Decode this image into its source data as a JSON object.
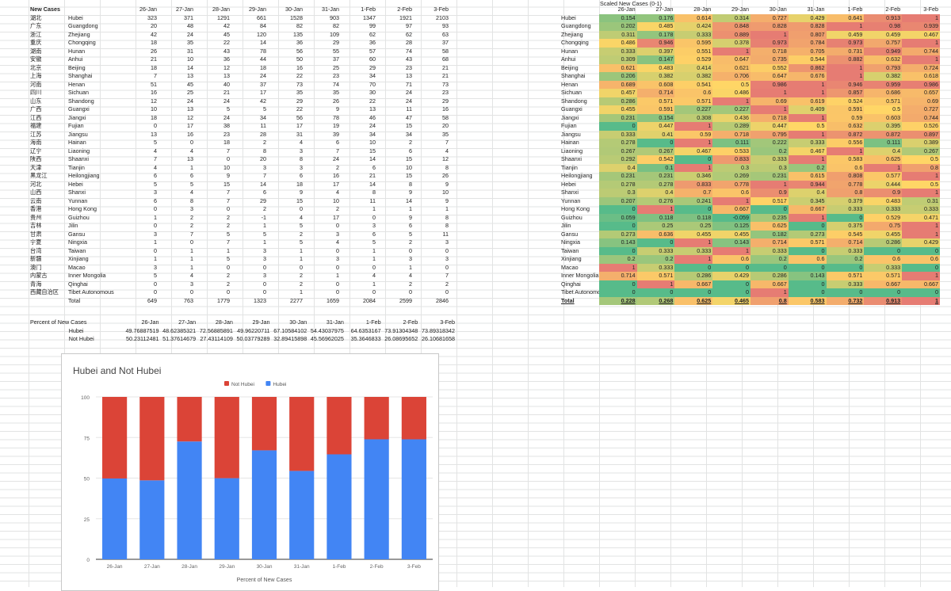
{
  "new_cases": {
    "title": "New Cases",
    "dates": [
      "26-Jan",
      "27-Jan",
      "28-Jan",
      "29-Jan",
      "30-Jan",
      "31-Jan",
      "1-Feb",
      "2-Feb",
      "3-Feb"
    ],
    "rows": [
      {
        "cn": "湖北",
        "en": "Hubei",
        "v": [
          "323",
          "371",
          "1291",
          "661",
          "1528",
          "903",
          "1347",
          "1921",
          "2103"
        ]
      },
      {
        "cn": "广东",
        "en": "Guangdong",
        "v": [
          "20",
          "48",
          "42",
          "84",
          "82",
          "82",
          "99",
          "97",
          "93"
        ]
      },
      {
        "cn": "浙江",
        "en": "Zhejiang",
        "v": [
          "42",
          "24",
          "45",
          "120",
          "135",
          "109",
          "62",
          "62",
          "63"
        ]
      },
      {
        "cn": "重庆",
        "en": "Chongqing",
        "v": [
          "18",
          "35",
          "22",
          "14",
          "36",
          "29",
          "36",
          "28",
          "37"
        ]
      },
      {
        "cn": "湖南",
        "en": "Hunan",
        "v": [
          "26",
          "31",
          "43",
          "78",
          "56",
          "55",
          "57",
          "74",
          "58"
        ]
      },
      {
        "cn": "安徽",
        "en": "Anhui",
        "v": [
          "21",
          "10",
          "36",
          "44",
          "50",
          "37",
          "60",
          "43",
          "68"
        ]
      },
      {
        "cn": "北京",
        "en": "Beijing",
        "v": [
          "18",
          "14",
          "12",
          "18",
          "16",
          "25",
          "29",
          "23",
          "21"
        ]
      },
      {
        "cn": "上海",
        "en": "Shanghai",
        "v": [
          "7",
          "13",
          "13",
          "24",
          "22",
          "23",
          "34",
          "13",
          "21"
        ]
      },
      {
        "cn": "河南",
        "en": "Henan",
        "v": [
          "51",
          "45",
          "40",
          "37",
          "73",
          "74",
          "70",
          "71",
          "73"
        ]
      },
      {
        "cn": "四川",
        "en": "Sichuan",
        "v": [
          "16",
          "25",
          "21",
          "17",
          "35",
          "35",
          "30",
          "24",
          "23"
        ]
      },
      {
        "cn": "山东",
        "en": "Shandong",
        "v": [
          "12",
          "24",
          "24",
          "42",
          "29",
          "26",
          "22",
          "24",
          "29"
        ]
      },
      {
        "cn": "广西",
        "en": "Guangxi",
        "v": [
          "10",
          "13",
          "5",
          "5",
          "22",
          "9",
          "13",
          "11",
          "16"
        ]
      },
      {
        "cn": "江西",
        "en": "Jiangxi",
        "v": [
          "18",
          "12",
          "24",
          "34",
          "56",
          "78",
          "46",
          "47",
          "58"
        ]
      },
      {
        "cn": "福建",
        "en": "Fujian",
        "v": [
          "0",
          "17",
          "38",
          "11",
          "17",
          "19",
          "24",
          "15",
          "20"
        ]
      },
      {
        "cn": "江苏",
        "en": "Jiangsu",
        "v": [
          "13",
          "16",
          "23",
          "28",
          "31",
          "39",
          "34",
          "34",
          "35"
        ]
      },
      {
        "cn": "海南",
        "en": "Hainan",
        "v": [
          "5",
          "0",
          "18",
          "2",
          "4",
          "6",
          "10",
          "2",
          "7"
        ]
      },
      {
        "cn": "辽宁",
        "en": "Liaoning",
        "v": [
          "4",
          "4",
          "7",
          "8",
          "3",
          "7",
          "15",
          "6",
          "4"
        ]
      },
      {
        "cn": "陕西",
        "en": "Shaanxi",
        "v": [
          "7",
          "13",
          "0",
          "20",
          "8",
          "24",
          "14",
          "15",
          "12"
        ]
      },
      {
        "cn": "天津",
        "en": "Tianjin",
        "v": [
          "4",
          "1",
          "10",
          "3",
          "3",
          "2",
          "6",
          "10",
          "8"
        ]
      },
      {
        "cn": "黑龙江",
        "en": "Heilongjiang",
        "v": [
          "6",
          "6",
          "9",
          "7",
          "6",
          "16",
          "21",
          "15",
          "26"
        ]
      },
      {
        "cn": "河北",
        "en": "Hebei",
        "v": [
          "5",
          "5",
          "15",
          "14",
          "18",
          "17",
          "14",
          "8",
          "9"
        ]
      },
      {
        "cn": "山西",
        "en": "Shanxi",
        "v": [
          "3",
          "4",
          "7",
          "6",
          "9",
          "4",
          "8",
          "9",
          "10"
        ]
      },
      {
        "cn": "云南",
        "en": "Yunnan",
        "v": [
          "6",
          "8",
          "7",
          "29",
          "15",
          "10",
          "11",
          "14",
          "9"
        ]
      },
      {
        "cn": "香港",
        "en": "Hong Kong",
        "v": [
          "0",
          "3",
          "0",
          "2",
          "0",
          "2",
          "1",
          "1",
          "1"
        ]
      },
      {
        "cn": "贵州",
        "en": "Guizhou",
        "v": [
          "1",
          "2",
          "2",
          "-1",
          "4",
          "17",
          "0",
          "9",
          "8"
        ]
      },
      {
        "cn": "吉林",
        "en": "Jilin",
        "v": [
          "0",
          "2",
          "2",
          "1",
          "5",
          "0",
          "3",
          "6",
          "8"
        ]
      },
      {
        "cn": "甘肃",
        "en": "Gansu",
        "v": [
          "3",
          "7",
          "5",
          "5",
          "2",
          "3",
          "6",
          "5",
          "11"
        ]
      },
      {
        "cn": "宁夏",
        "en": "Ningxia",
        "v": [
          "1",
          "0",
          "7",
          "1",
          "5",
          "4",
          "5",
          "2",
          "3"
        ]
      },
      {
        "cn": "台湾",
        "en": "Taiwan",
        "v": [
          "0",
          "1",
          "1",
          "3",
          "1",
          "0",
          "1",
          "0",
          "0"
        ]
      },
      {
        "cn": "新疆",
        "en": "Xinjiang",
        "v": [
          "1",
          "1",
          "5",
          "3",
          "1",
          "3",
          "1",
          "3",
          "3"
        ]
      },
      {
        "cn": "澳门",
        "en": "Macao",
        "v": [
          "3",
          "1",
          "0",
          "0",
          "0",
          "0",
          "0",
          "1",
          "0"
        ]
      },
      {
        "cn": "内蒙古",
        "en": "Inner Mongolia",
        "v": [
          "5",
          "4",
          "2",
          "3",
          "2",
          "1",
          "4",
          "4",
          "7"
        ]
      },
      {
        "cn": "青海",
        "en": "Qinghai",
        "v": [
          "0",
          "3",
          "2",
          "0",
          "2",
          "0",
          "1",
          "2",
          "2"
        ]
      },
      {
        "cn": "西藏自治区",
        "en": "Tibet Autonomous",
        "v": [
          "0",
          "0",
          "0",
          "0",
          "1",
          "0",
          "0",
          "0",
          "0"
        ]
      }
    ],
    "total_label": "Total",
    "totals": [
      "649",
      "763",
      "1779",
      "1323",
      "2277",
      "1659",
      "2084",
      "2599",
      "2846"
    ]
  },
  "percent": {
    "title": "Percent of New Cases",
    "rows": [
      {
        "label": "Hubei",
        "v": [
          "49.76887519",
          "48.62385321",
          "72.56885891",
          "49.96220711",
          "67.10584102",
          "54.43037975",
          "64.6353167",
          "73.91304348",
          "73.89318342"
        ]
      },
      {
        "label": "Not Hubei",
        "v": [
          "50.23112481",
          "51.37614679",
          "27.43114109",
          "50.03779289",
          "32.89415898",
          "45.56962025",
          "35.3646833",
          "26.08695652",
          "26.10681658"
        ]
      }
    ]
  },
  "scaled": {
    "title": "Scaled New Cases (0-1)",
    "total_label": "Total",
    "rows": [
      {
        "en": "Hubei",
        "v": [
          "0.154",
          "0.176",
          "0.614",
          "0.314",
          "0.727",
          "0.429",
          "0.641",
          "0.913",
          "1"
        ]
      },
      {
        "en": "Guangdong",
        "v": [
          "0.202",
          "0.485",
          "0.424",
          "0.848",
          "0.828",
          "0.828",
          "1",
          "0.98",
          "0.939"
        ]
      },
      {
        "en": "Zhejiang",
        "v": [
          "0.311",
          "0.178",
          "0.333",
          "0.889",
          "1",
          "0.807",
          "0.459",
          "0.459",
          "0.467"
        ]
      },
      {
        "en": "Chongqing",
        "v": [
          "0.486",
          "0.946",
          "0.595",
          "0.378",
          "0.973",
          "0.784",
          "0.973",
          "0.757",
          "1"
        ]
      },
      {
        "en": "Hunan",
        "v": [
          "0.333",
          "0.397",
          "0.551",
          "1",
          "0.718",
          "0.705",
          "0.731",
          "0.949",
          "0.744"
        ]
      },
      {
        "en": "Anhui",
        "v": [
          "0.309",
          "0.147",
          "0.529",
          "0.647",
          "0.735",
          "0.544",
          "0.882",
          "0.632",
          "1"
        ]
      },
      {
        "en": "Beijing",
        "v": [
          "0.621",
          "0.483",
          "0.414",
          "0.621",
          "0.552",
          "0.862",
          "1",
          "0.793",
          "0.724"
        ]
      },
      {
        "en": "Shanghai",
        "v": [
          "0.206",
          "0.382",
          "0.382",
          "0.706",
          "0.647",
          "0.676",
          "1",
          "0.382",
          "0.618"
        ]
      },
      {
        "en": "Henan",
        "v": [
          "0.689",
          "0.608",
          "0.541",
          "0.5",
          "0.986",
          "1",
          "0.946",
          "0.959",
          "0.986"
        ]
      },
      {
        "en": "Sichuan",
        "v": [
          "0.457",
          "0.714",
          "0.6",
          "0.486",
          "1",
          "1",
          "0.857",
          "0.686",
          "0.657"
        ]
      },
      {
        "en": "Shandong",
        "v": [
          "0.286",
          "0.571",
          "0.571",
          "1",
          "0.69",
          "0.619",
          "0.524",
          "0.571",
          "0.69"
        ]
      },
      {
        "en": "Guangxi",
        "v": [
          "0.455",
          "0.591",
          "0.227",
          "0.227",
          "1",
          "0.409",
          "0.591",
          "0.5",
          "0.727"
        ]
      },
      {
        "en": "Jiangxi",
        "v": [
          "0.231",
          "0.154",
          "0.308",
          "0.436",
          "0.718",
          "1",
          "0.59",
          "0.603",
          "0.744"
        ]
      },
      {
        "en": "Fujian",
        "v": [
          "0",
          "0.447",
          "1",
          "0.289",
          "0.447",
          "0.5",
          "0.632",
          "0.395",
          "0.526"
        ]
      },
      {
        "en": "Jiangsu",
        "v": [
          "0.333",
          "0.41",
          "0.59",
          "0.718",
          "0.795",
          "1",
          "0.872",
          "0.872",
          "0.897"
        ]
      },
      {
        "en": "Hainan",
        "v": [
          "0.278",
          "0",
          "1",
          "0.111",
          "0.222",
          "0.333",
          "0.556",
          "0.111",
          "0.389"
        ]
      },
      {
        "en": "Liaoning",
        "v": [
          "0.267",
          "0.267",
          "0.467",
          "0.533",
          "0.2",
          "0.467",
          "1",
          "0.4",
          "0.267"
        ]
      },
      {
        "en": "Shaanxi",
        "v": [
          "0.292",
          "0.542",
          "0",
          "0.833",
          "0.333",
          "1",
          "0.583",
          "0.625",
          "0.5"
        ]
      },
      {
        "en": "Tianjin",
        "v": [
          "0.4",
          "0.1",
          "1",
          "0.3",
          "0.3",
          "0.2",
          "0.6",
          "1",
          "0.8"
        ]
      },
      {
        "en": "Heilongjiang",
        "v": [
          "0.231",
          "0.231",
          "0.346",
          "0.269",
          "0.231",
          "0.615",
          "0.808",
          "0.577",
          "1"
        ]
      },
      {
        "en": "Hebei",
        "v": [
          "0.278",
          "0.278",
          "0.833",
          "0.778",
          "1",
          "0.944",
          "0.778",
          "0.444",
          "0.5"
        ]
      },
      {
        "en": "Shanxi",
        "v": [
          "0.3",
          "0.4",
          "0.7",
          "0.6",
          "0.9",
          "0.4",
          "0.8",
          "0.9",
          "1"
        ]
      },
      {
        "en": "Yunnan",
        "v": [
          "0.207",
          "0.276",
          "0.241",
          "1",
          "0.517",
          "0.345",
          "0.379",
          "0.483",
          "0.31"
        ]
      },
      {
        "en": "Hong Kong",
        "v": [
          "0",
          "1",
          "0",
          "0.667",
          "0",
          "0.667",
          "0.333",
          "0.333",
          "0.333"
        ]
      },
      {
        "en": "Guizhou",
        "v": [
          "0.059",
          "0.118",
          "0.118",
          "-0.059",
          "0.235",
          "1",
          "0",
          "0.529",
          "0.471"
        ]
      },
      {
        "en": "Jilin",
        "v": [
          "0",
          "0.25",
          "0.25",
          "0.125",
          "0.625",
          "0",
          "0.375",
          "0.75",
          "1"
        ]
      },
      {
        "en": "Gansu",
        "v": [
          "0.273",
          "0.636",
          "0.455",
          "0.455",
          "0.182",
          "0.273",
          "0.545",
          "0.455",
          "1"
        ]
      },
      {
        "en": "Ningxia",
        "v": [
          "0.143",
          "0",
          "1",
          "0.143",
          "0.714",
          "0.571",
          "0.714",
          "0.286",
          "0.429"
        ]
      },
      {
        "en": "Taiwan",
        "v": [
          "0",
          "0.333",
          "0.333",
          "1",
          "0.333",
          "0",
          "0.333",
          "0",
          "0"
        ]
      },
      {
        "en": "Xinjiang",
        "v": [
          "0.2",
          "0.2",
          "1",
          "0.6",
          "0.2",
          "0.6",
          "0.2",
          "0.6",
          "0.6"
        ]
      },
      {
        "en": "Macao",
        "v": [
          "1",
          "0.333",
          "0",
          "0",
          "0",
          "0",
          "0",
          "0.333",
          "0"
        ]
      },
      {
        "en": "Inner Mongolia",
        "v": [
          "0.714",
          "0.571",
          "0.286",
          "0.429",
          "0.286",
          "0.143",
          "0.571",
          "0.571",
          "1"
        ]
      },
      {
        "en": "Qinghai",
        "v": [
          "0",
          "1",
          "0.667",
          "0",
          "0.667",
          "0",
          "0.333",
          "0.667",
          "0.667"
        ]
      },
      {
        "en": "Tibet Autonomous",
        "v": [
          "0",
          "0",
          "0",
          "0",
          "1",
          "0",
          "0",
          "0",
          "0"
        ]
      }
    ],
    "totals": [
      "0.228",
      "0.268",
      "0.625",
      "0.465",
      "0.8",
      "0.583",
      "0.732",
      "0.913",
      "1"
    ]
  },
  "chart_data": {
    "type": "bar",
    "stacked": true,
    "title": "Hubei and Not Hubei",
    "xlabel": "Percent of New Cases",
    "ylabel": "",
    "ylim": [
      0,
      100
    ],
    "yticks": [
      "0",
      "25",
      "50",
      "75",
      "100"
    ],
    "legend_position": "top",
    "categories": [
      "26-Jan",
      "27-Jan",
      "28-Jan",
      "29-Jan",
      "30-Jan",
      "31-Jan",
      "1-Feb",
      "2-Feb",
      "3-Feb"
    ],
    "series": [
      {
        "name": "Hubei",
        "color": "#4285f4",
        "values": [
          49.77,
          48.62,
          72.57,
          49.96,
          67.11,
          54.43,
          64.64,
          73.91,
          73.89
        ]
      },
      {
        "name": "Not Hubei",
        "color": "#db4437",
        "values": [
          50.23,
          51.38,
          27.43,
          50.04,
          32.89,
          45.57,
          35.36,
          26.09,
          26.11
        ]
      }
    ],
    "legend_order": [
      "Not Hubei",
      "Hubei"
    ]
  }
}
